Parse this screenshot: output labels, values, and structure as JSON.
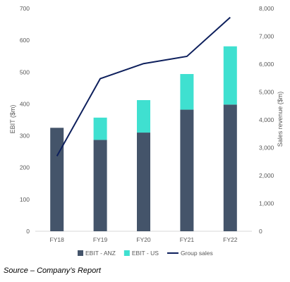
{
  "chart_data": {
    "type": "bar",
    "categories": [
      "FY18",
      "FY19",
      "FY20",
      "FY21",
      "FY22"
    ],
    "series": [
      {
        "name": "EBIT - ANZ",
        "kind": "bar",
        "axis": "left",
        "color": "#44546a",
        "values": [
          325,
          287,
          310,
          382,
          398
        ]
      },
      {
        "name": "EBIT - US",
        "kind": "bar",
        "axis": "left",
        "color": "#3fe0d0",
        "values": [
          0,
          70,
          102,
          112,
          183
        ]
      },
      {
        "name": "Group sales",
        "kind": "line",
        "axis": "right",
        "color": "#0d1f5c",
        "values": [
          2700,
          5480,
          6020,
          6280,
          7680
        ]
      }
    ],
    "stacked": true,
    "ylabel": "EBIT ($m)",
    "ylabel_right": "Sales revenue ($m)",
    "ylim": [
      0,
      700
    ],
    "ylim_right": [
      0,
      8000
    ],
    "yticks": [
      "0",
      "100",
      "200",
      "300",
      "400",
      "500",
      "600",
      "700"
    ],
    "yticks_right": [
      "0",
      "1,000",
      "2,000",
      "3,000",
      "4,000",
      "5,000",
      "6,000",
      "7,000",
      "8,000"
    ],
    "grid": false,
    "legend_position": "bottom"
  },
  "source_note": "Source – Company’s Report"
}
